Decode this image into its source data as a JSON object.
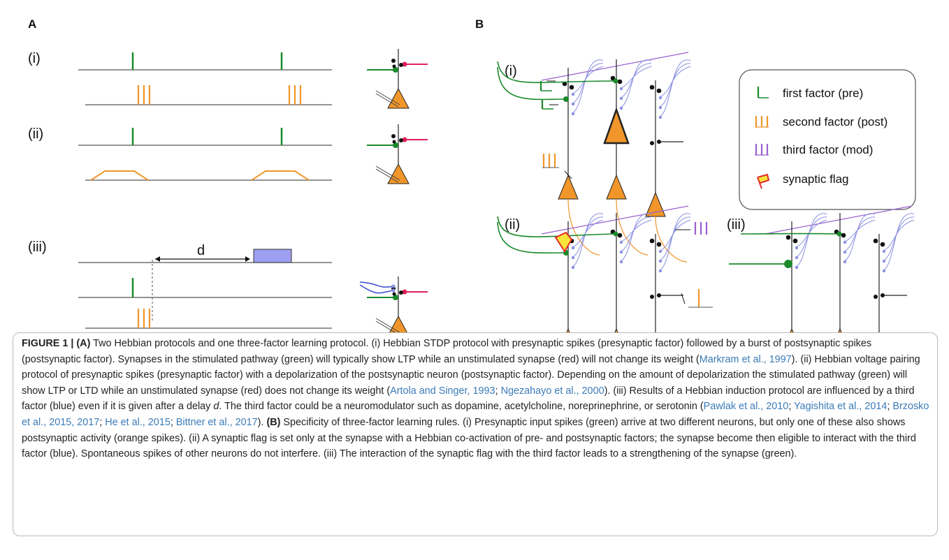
{
  "panel_a": {
    "label": "A",
    "rows": [
      "(i)",
      "(ii)",
      "(iii)"
    ],
    "delay_label": "d"
  },
  "panel_b": {
    "label": "B",
    "rows": [
      "(i)",
      "(ii)",
      "(iii)"
    ],
    "legend": [
      "first factor (pre)",
      "second factor (post)",
      "third factor (mod)",
      "synaptic flag"
    ]
  },
  "caption": [
    "FIGURE 1 | (A)",
    " Two Hebbian protocols and one three-factor learning protocol. (i) Hebbian STDP protocol with presynaptic spikes (presynaptic factor) followed by a burst of postsynaptic spikes (postsynaptic factor). Synapses in the stimulated pathway (green) will typically show LTP while an unstimulated synapse (red) will not change its weight (",
    "Markram et al., 1997",
    "). (ii) Hebbian voltage pairing protocol of presynaptic spikes (presynaptic factor) with a depolarization of the postsynaptic neuron (postsynaptic factor). Depending on the amount of depolarization the stimulated pathway (green) will show LTP or LTD while an unstimulated synapse (red) does not change its weight (",
    "Artola and Singer, 1993",
    "; ",
    "Ngezahayo et al., 2000",
    "). (iii) Results of a Hebbian induction protocol are influenced by a third factor (blue) even if it is given after a delay ",
    "d",
    ". The third factor could be a neuromodulator such as dopamine, acetylcholine, noreprinephrine, or serotonin (",
    "Pawlak et al., 2010",
    "; ",
    "Yagishita et al., 2014",
    "; ",
    "Brzosko et al., 2015, 2017",
    "; ",
    "He et al., 2015",
    "; ",
    "Bittner et al., 2017",
    "). ",
    "(B)",
    " Specificity of three-factor learning rules. (i) Presynaptic input spikes (green) arrive at two different neurons, but only one of these also shows postsynaptic activity (orange spikes). (ii) A synaptic flag is set only at the synapse with a Hebbian co-activation of pre- and postsynaptic factors; the synapse become then eligible to interact with the third factor (blue). Spontaneous spikes of other neurons do not interfere. (iii) The interaction of the synaptic flag with the third factor leads to a strengthening of the synapse (green)."
  ]
}
